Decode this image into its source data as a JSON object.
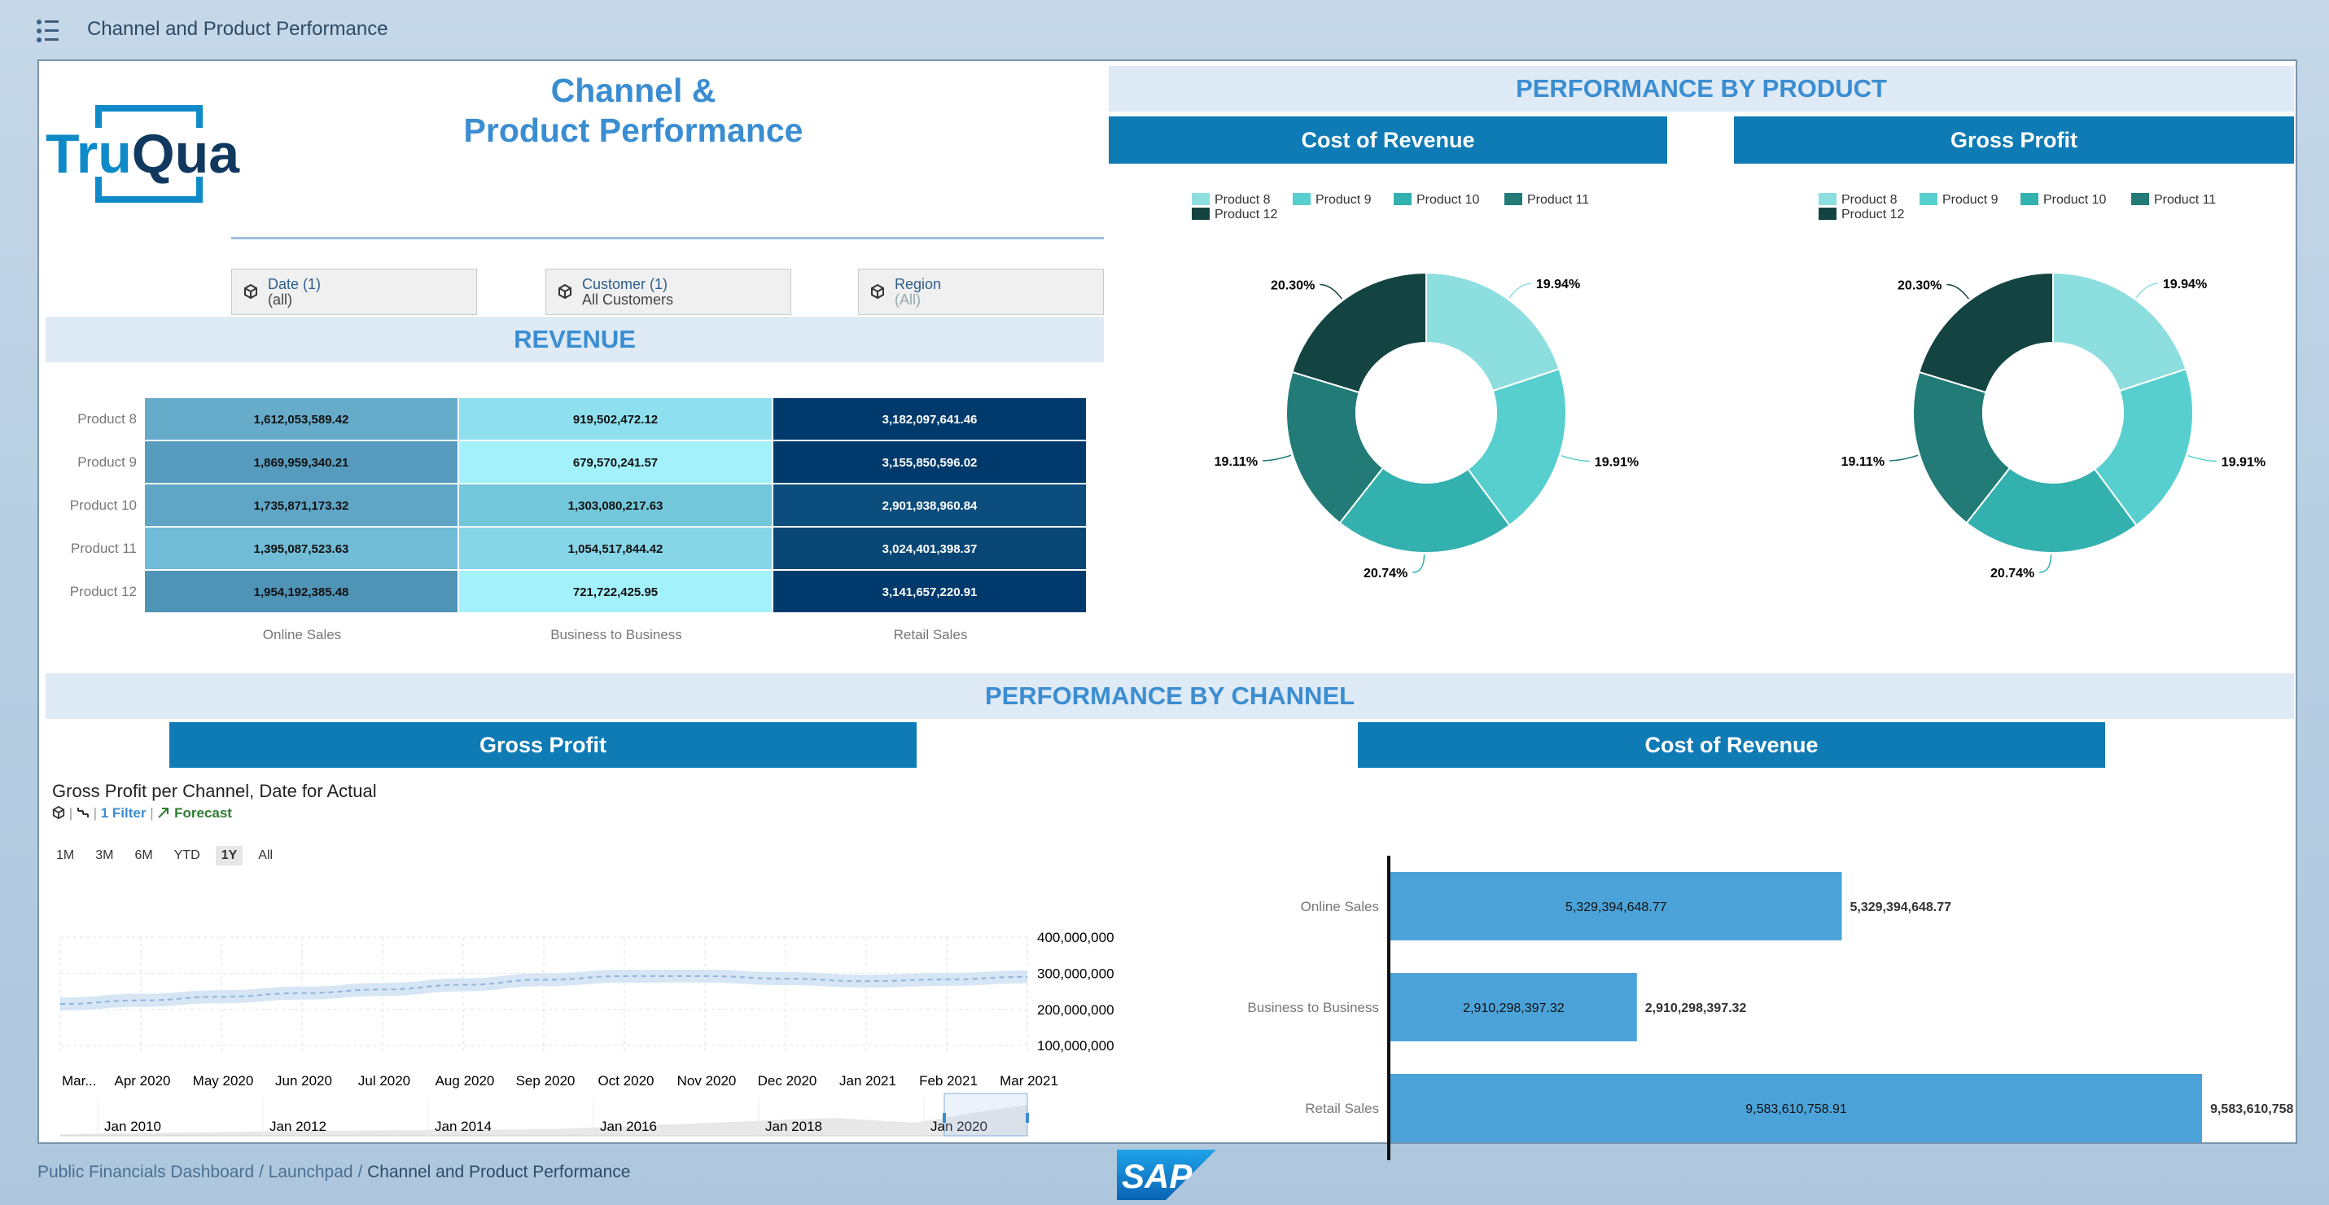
{
  "app": {
    "title": "Channel and Product Performance"
  },
  "header": {
    "title_line1": "Channel &",
    "title_line2": "Product Performance",
    "logo_text_a": "Tru",
    "logo_text_b": "Qua"
  },
  "filters": [
    {
      "label": "Date (1)",
      "value": "(all)"
    },
    {
      "label": "Customer (1)",
      "value": "All Customers"
    },
    {
      "label": "Region",
      "value": "(All)"
    }
  ],
  "revenue": {
    "title": "REVENUE",
    "rows": [
      "Product 8",
      "Product 9",
      "Product 10",
      "Product 11",
      "Product 12"
    ],
    "columns": [
      "Online Sales",
      "Business to Business",
      "Retail Sales"
    ],
    "values": [
      [
        "1,612,053,589.42",
        "919,502,472.12",
        "3,182,097,641.46"
      ],
      [
        "1,869,959,340.21",
        "679,570,241.57",
        "3,155,850,596.02"
      ],
      [
        "1,735,871,173.32",
        "1,303,080,217.63",
        "2,901,938,960.84"
      ],
      [
        "1,395,087,523.63",
        "1,054,517,844.42",
        "3,024,401,398.37"
      ],
      [
        "1,954,192,385.48",
        "721,722,425.95",
        "3,141,657,220.91"
      ]
    ],
    "colors": [
      [
        "#66abc9",
        "#8fe0ee",
        "#003a6c"
      ],
      [
        "#579cbe",
        "#a3f2fb",
        "#003a6c"
      ],
      [
        "#5fa5c6",
        "#72c7da",
        "#0b4d7c"
      ],
      [
        "#71bcd7",
        "#86d6e8",
        "#084676"
      ],
      [
        "#4f93b7",
        "#a3f2fb",
        "#003a6c"
      ]
    ],
    "text_colors": [
      "#111111",
      "#111111",
      "#ffffff"
    ]
  },
  "perf_product": {
    "title": "PERFORMANCE BY PRODUCT",
    "legend": [
      {
        "name": "Product 8",
        "color": "#8ddedf"
      },
      {
        "name": "Product 9",
        "color": "#58cfcf"
      },
      {
        "name": "Product 10",
        "color": "#33b1af"
      },
      {
        "name": "Product 11",
        "color": "#227b76"
      },
      {
        "name": "Product 12",
        "color": "#134442"
      }
    ],
    "cost_of_revenue": {
      "title": "Cost of Revenue",
      "labels": [
        "19.94%",
        "19.91%",
        "20.74%",
        "19.11%",
        "20.30%"
      ]
    },
    "gross_profit": {
      "title": "Gross Profit",
      "labels": [
        "19.94%",
        "19.91%",
        "20.74%",
        "19.11%",
        "20.30%"
      ]
    }
  },
  "perf_channel": {
    "title": "PERFORMANCE BY CHANNEL",
    "gross_profit": {
      "title": "Gross Profit",
      "chart_title": "Gross Profit per Channel, Date for Actual",
      "filter_text": "1 Filter",
      "forecast_text": "Forecast",
      "ranges": [
        "1M",
        "3M",
        "6M",
        "YTD",
        "1Y",
        "All"
      ],
      "active_range": "1Y",
      "y_ticks": [
        "400,000,000",
        "300,000,000",
        "200,000,000",
        "100,000,000"
      ],
      "x_ticks": [
        "Mar...",
        "Apr 2020",
        "May 2020",
        "Jun 2020",
        "Jul 2020",
        "Aug 2020",
        "Sep 2020",
        "Oct 2020",
        "Nov 2020",
        "Dec 2020",
        "Jan 2021",
        "Feb 2021",
        "Mar 2021"
      ],
      "nav_ticks": [
        "Jan 2010",
        "Jan 2012",
        "Jan 2014",
        "Jan 2016",
        "Jan 2018",
        "Jan 2020"
      ]
    },
    "cost_of_revenue": {
      "title": "Cost of Revenue"
    }
  },
  "chart_data": [
    {
      "type": "pie",
      "title": "Cost of Revenue",
      "categories": [
        "Product 8",
        "Product 9",
        "Product 10",
        "Product 11",
        "Product 12"
      ],
      "values": [
        19.94,
        19.91,
        20.74,
        19.11,
        20.3
      ]
    },
    {
      "type": "pie",
      "title": "Gross Profit",
      "categories": [
        "Product 8",
        "Product 9",
        "Product 10",
        "Product 11",
        "Product 12"
      ],
      "values": [
        19.94,
        19.91,
        20.74,
        19.11,
        20.3
      ]
    },
    {
      "type": "line",
      "title": "Gross Profit per Channel, Date for Actual",
      "x": [
        "Mar 2020",
        "Apr 2020",
        "May 2020",
        "Jun 2020",
        "Jul 2020",
        "Aug 2020",
        "Sep 2020",
        "Oct 2020",
        "Nov 2020",
        "Dec 2020",
        "Jan 2021",
        "Feb 2021",
        "Mar 2021"
      ],
      "series": [
        {
          "values": [
            215000000,
            225000000,
            235000000,
            245000000,
            255000000,
            268000000,
            282000000,
            292000000,
            292000000,
            285000000,
            278000000,
            283000000,
            290000000
          ]
        }
      ],
      "band_half_width": 18000000,
      "ylim": [
        80000000,
        400000000
      ]
    },
    {
      "type": "bar",
      "orientation": "horizontal",
      "title": "Cost of Revenue",
      "categories": [
        "Online Sales",
        "Business to Business",
        "Retail Sales"
      ],
      "values": [
        5329394648.77,
        2910298397.32,
        9583610758.91
      ],
      "labels": [
        "5,329,394,648.77",
        "2,910,298,397.32",
        "9,583,610,758.91"
      ],
      "color": "#4ba3d9",
      "xlim": [
        0,
        9900000000
      ]
    }
  ]
}
